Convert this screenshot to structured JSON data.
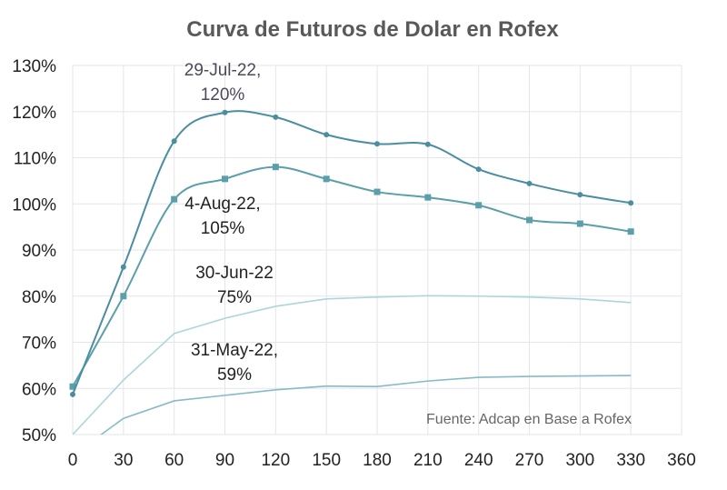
{
  "chart_data": {
    "type": "line",
    "title": "Curva de Futuros de Dolar en Rofex",
    "source_note": "Fuente: Adcap en Base a Rofex",
    "x": [
      0,
      30,
      60,
      90,
      120,
      150,
      180,
      210,
      240,
      270,
      300,
      330
    ],
    "xlim": [
      0,
      360
    ],
    "x_ticks": [
      "0",
      "30",
      "60",
      "90",
      "120",
      "150",
      "180",
      "210",
      "240",
      "270",
      "300",
      "330",
      "360"
    ],
    "ylim": [
      50,
      130
    ],
    "y_ticks": [
      "50%",
      "60%",
      "70%",
      "80%",
      "90%",
      "100%",
      "110%",
      "120%",
      "130%"
    ],
    "grid": true,
    "series": [
      {
        "name": "29-Jul-22",
        "color": "#4a8ea0",
        "smooth": true,
        "marker": "dot",
        "values": [
          58.7,
          86.3,
          113.6,
          119.8,
          118.8,
          115.0,
          113.0,
          112.9,
          107.5,
          104.4,
          102.0,
          100.2
        ]
      },
      {
        "name": "4-Aug-22",
        "color": "#5a9fa9",
        "smooth": true,
        "marker": "square",
        "values": [
          60.4,
          80.0,
          101.0,
          105.4,
          108.0,
          105.4,
          102.6,
          101.4,
          99.7,
          96.5,
          95.7,
          94.0
        ]
      },
      {
        "name": "30-Jun-22",
        "color": "#acd6dc",
        "smooth": false,
        "marker": "none",
        "values": [
          50.0,
          61.8,
          71.9,
          75.2,
          77.8,
          79.4,
          79.8,
          80.1,
          80.0,
          79.8,
          79.4,
          78.6
        ]
      },
      {
        "name": "31-May-22",
        "color": "#86bac7",
        "smooth": false,
        "marker": "none",
        "values": [
          45.5,
          53.5,
          57.3,
          58.5,
          59.7,
          60.5,
          60.4,
          61.6,
          62.4,
          62.6,
          62.7,
          62.8
        ]
      }
    ],
    "annotations": [
      {
        "line1": "29-Jul-22,",
        "line2": "120%",
        "color": "#4a4a5a"
      },
      {
        "line1": "4-Aug-22,",
        "line2": "105%",
        "color": "#222"
      },
      {
        "line1": "30-Jun-22",
        "line2": "75%",
        "color": "#222"
      },
      {
        "line1": "31-May-22,",
        "line2": "59%",
        "color": "#222"
      }
    ]
  }
}
